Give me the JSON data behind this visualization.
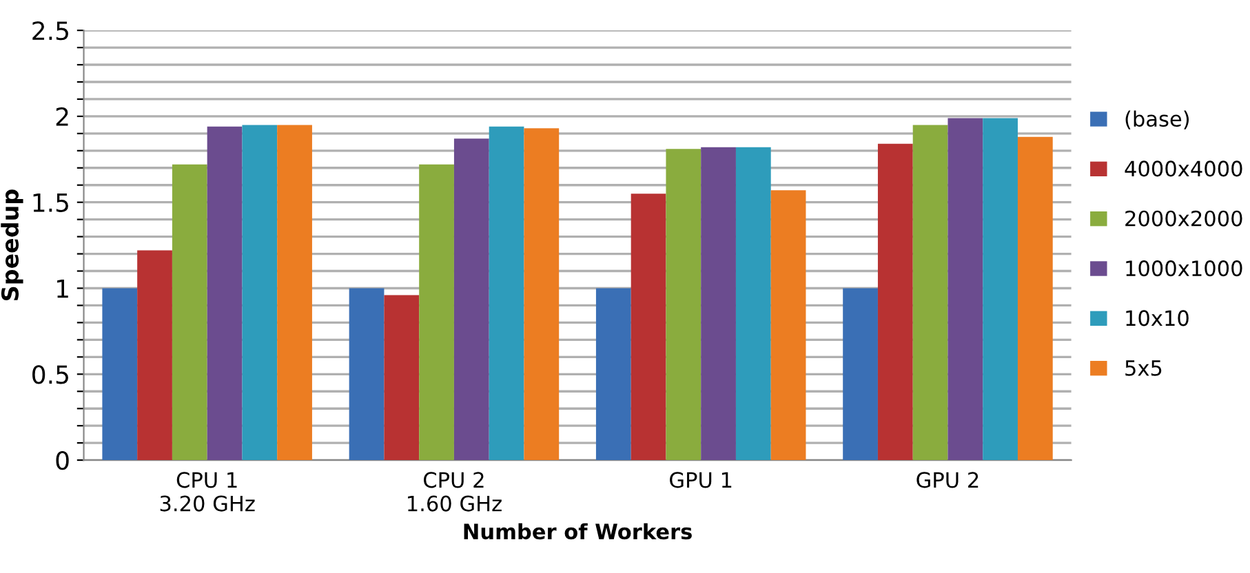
{
  "chart_data": {
    "type": "bar",
    "xlabel": "Number of Workers",
    "ylabel": "Speedup",
    "categories": [
      "CPU 1\n3.20 GHz",
      "CPU 2\n1.60 GHz",
      "GPU 1",
      "GPU 2"
    ],
    "series": [
      {
        "name": "(base)",
        "color": "#3a6fb5",
        "values": [
          1,
          1,
          1,
          1
        ]
      },
      {
        "name": "4000x4000",
        "color": "#b83232",
        "values": [
          1.22,
          0.96,
          1.55,
          1.84
        ]
      },
      {
        "name": "2000x2000",
        "color": "#8aac3e",
        "values": [
          1.72,
          1.72,
          1.81,
          1.95
        ]
      },
      {
        "name": "1000x1000",
        "color": "#6b4c8f",
        "values": [
          1.94,
          1.87,
          1.82,
          1.99
        ]
      },
      {
        "name": "10x10",
        "color": "#2e9cbb",
        "values": [
          1.95,
          1.94,
          1.82,
          1.99
        ]
      },
      {
        "name": "5x5",
        "color": "#ec7d22",
        "values": [
          1.95,
          1.93,
          1.57,
          1.88
        ]
      }
    ],
    "ylim": [
      0,
      2.5
    ],
    "yticks": [
      0,
      {
        "value": 0.1,
        "label": null
      },
      {
        "value": 0.2,
        "label": null
      },
      {
        "value": 0.3,
        "label": null
      },
      {
        "value": 0.4,
        "label": null
      },
      0.5,
      {
        "value": 0.6,
        "label": null
      },
      {
        "value": 0.7,
        "label": null
      },
      {
        "value": 0.8,
        "label": null
      },
      {
        "value": 0.9,
        "label": null
      },
      1,
      {
        "value": 1.1,
        "label": null
      },
      {
        "value": 1.2,
        "label": null
      },
      {
        "value": 1.3,
        "label": null
      },
      {
        "value": 1.4,
        "label": null
      },
      1.5,
      {
        "value": 1.6,
        "label": null
      },
      {
        "value": 1.7,
        "label": null
      },
      {
        "value": 1.8,
        "label": null
      },
      {
        "value": 1.9,
        "label": null
      },
      2,
      {
        "value": 2.1,
        "label": null
      },
      {
        "value": 2.2,
        "label": null
      },
      {
        "value": 2.3,
        "label": null
      },
      {
        "value": 2.4,
        "label": null
      },
      2.5
    ],
    "grid": "y",
    "legend": "right"
  }
}
